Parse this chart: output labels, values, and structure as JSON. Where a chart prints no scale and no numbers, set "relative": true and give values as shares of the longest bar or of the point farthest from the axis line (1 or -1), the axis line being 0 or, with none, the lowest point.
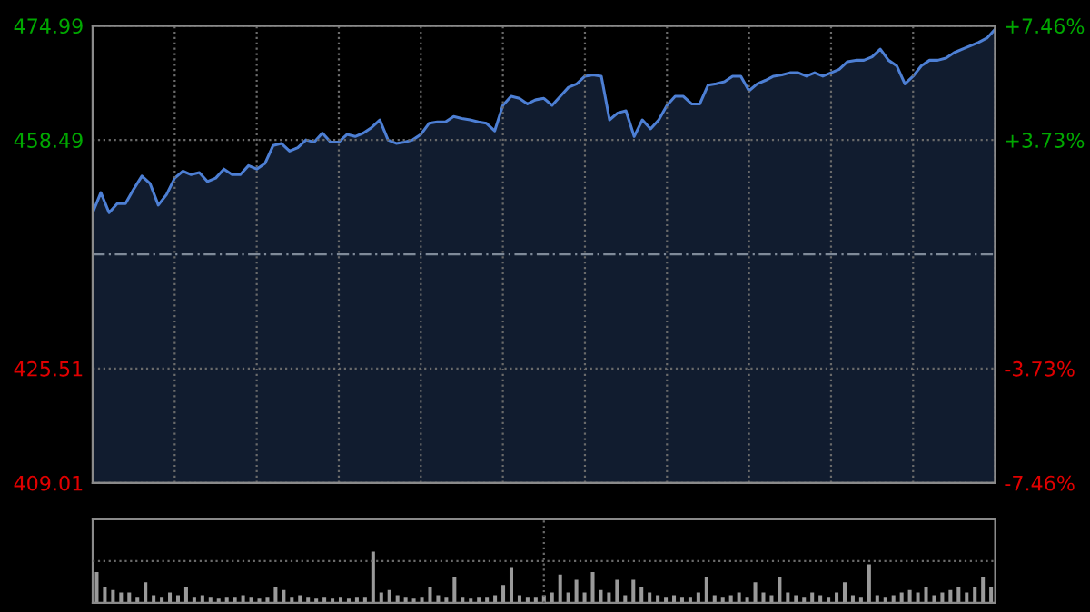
{
  "chart_data": [
    {
      "type": "area",
      "categories": [
        null,
        null,
        null,
        null,
        null,
        null,
        null,
        null,
        null,
        null,
        null,
        null,
        null,
        null,
        null,
        null,
        null,
        null,
        null,
        null,
        null,
        null,
        null,
        null,
        null,
        null,
        null,
        null,
        null,
        null,
        null,
        null,
        null,
        null,
        null,
        null,
        null,
        null,
        null,
        null,
        null,
        null,
        null,
        null,
        null,
        null,
        null,
        null,
        null,
        null,
        null,
        null,
        null,
        null,
        null,
        null,
        null,
        null,
        null,
        null,
        null,
        null,
        null,
        null,
        null,
        null,
        null,
        null,
        null,
        null,
        null,
        null,
        null,
        null,
        null,
        null,
        null,
        null,
        null,
        null,
        null,
        null,
        null,
        null,
        null,
        null,
        null,
        null,
        null,
        null,
        null,
        null,
        null,
        null,
        null,
        null,
        null,
        null,
        null,
        null,
        null,
        null,
        null,
        null,
        null,
        null,
        null,
        null,
        null,
        null,
        null
      ],
      "series": [
        {
          "color": "#4d7fd4",
          "values": [
            448.0,
            450.9,
            448.0,
            449.3,
            449.3,
            451.4,
            453.3,
            452.2,
            449.1,
            450.6,
            453.0,
            454.0,
            453.5,
            453.8,
            452.5,
            453.0,
            454.3,
            453.5,
            453.5,
            454.8,
            454.3,
            455.1,
            457.7,
            458.0,
            456.9,
            457.4,
            458.5,
            458.2,
            459.5,
            458.2,
            458.2,
            459.3,
            459.0,
            459.5,
            460.3,
            461.4,
            458.5,
            458.0,
            458.2,
            458.5,
            459.3,
            460.9,
            461.1,
            461.1,
            461.9,
            461.6,
            461.4,
            461.1,
            460.9,
            459.8,
            463.5,
            464.8,
            464.5,
            463.7,
            464.3,
            464.5,
            463.5,
            464.8,
            466.1,
            466.6,
            467.7,
            467.9,
            467.7,
            461.4,
            462.4,
            462.7,
            459.0,
            461.4,
            460.1,
            461.4,
            463.5,
            464.8,
            464.8,
            463.7,
            463.7,
            466.4,
            466.6,
            466.9,
            467.7,
            467.7,
            465.6,
            466.6,
            467.1,
            467.7,
            467.9,
            468.2,
            468.2,
            467.7,
            468.2,
            467.7,
            468.2,
            468.7,
            469.8,
            470.0,
            470.0,
            470.5,
            471.6,
            470.0,
            469.2,
            466.6,
            467.7,
            469.2,
            470.0,
            470.0,
            470.3,
            471.1,
            471.6,
            472.1,
            472.6,
            473.2,
            474.5
          ]
        }
      ],
      "ylim": [
        409.01,
        474.99
      ],
      "yticks": [
        409.01,
        425.51,
        458.49,
        474.99
      ],
      "y2lim": [
        -7.46,
        7.46
      ],
      "y2ticks": [
        {
          "value": -7.46,
          "label": "-7.46%"
        },
        {
          "value": -3.73,
          "label": "-3.73%"
        },
        {
          "value": 3.73,
          "label": "+3.73%"
        },
        {
          "value": 7.46,
          "label": "+7.46%"
        }
      ],
      "ref_lines": [
        {
          "axis": "y",
          "value": 442.0,
          "color": "#7f8a99",
          "line_style": "dashed"
        }
      ],
      "grid": true
    },
    {
      "type": "bar",
      "relative": true,
      "categories": [
        null,
        null,
        null,
        null,
        null,
        null,
        null,
        null,
        null,
        null,
        null,
        null,
        null,
        null,
        null,
        null,
        null,
        null,
        null,
        null,
        null,
        null,
        null,
        null,
        null,
        null,
        null,
        null,
        null,
        null,
        null,
        null,
        null,
        null,
        null,
        null,
        null,
        null,
        null,
        null,
        null,
        null,
        null,
        null,
        null,
        null,
        null,
        null,
        null,
        null,
        null,
        null,
        null,
        null,
        null,
        null,
        null,
        null,
        null,
        null,
        null,
        null,
        null,
        null,
        null,
        null,
        null,
        null,
        null,
        null,
        null,
        null,
        null,
        null,
        null,
        null,
        null,
        null,
        null,
        null,
        null,
        null,
        null,
        null,
        null,
        null,
        null,
        null,
        null,
        null,
        null,
        null,
        null,
        null,
        null,
        null,
        null,
        null,
        null,
        null,
        null,
        null,
        null,
        null,
        null,
        null,
        null,
        null,
        null,
        null,
        null
      ],
      "series": [
        {
          "color": "#9a9a9a",
          "values": [
            0.6,
            0.3,
            0.25,
            0.2,
            0.2,
            0.1,
            0.4,
            0.15,
            0.1,
            0.2,
            0.15,
            0.3,
            0.1,
            0.15,
            0.1,
            0.08,
            0.1,
            0.1,
            0.15,
            0.1,
            0.08,
            0.1,
            0.3,
            0.25,
            0.1,
            0.15,
            0.1,
            0.08,
            0.1,
            0.08,
            0.1,
            0.08,
            0.1,
            0.1,
            1.0,
            0.2,
            0.25,
            0.15,
            0.1,
            0.08,
            0.1,
            0.3,
            0.15,
            0.1,
            0.5,
            0.1,
            0.08,
            0.1,
            0.1,
            0.15,
            0.35,
            0.7,
            0.15,
            0.1,
            0.1,
            0.15,
            0.2,
            0.55,
            0.2,
            0.45,
            0.2,
            0.6,
            0.25,
            0.2,
            0.45,
            0.15,
            0.45,
            0.3,
            0.2,
            0.15,
            0.1,
            0.15,
            0.1,
            0.1,
            0.2,
            0.5,
            0.15,
            0.1,
            0.15,
            0.2,
            0.1,
            0.4,
            0.2,
            0.15,
            0.5,
            0.2,
            0.15,
            0.1,
            0.2,
            0.15,
            0.1,
            0.2,
            0.4,
            0.15,
            0.1,
            0.75,
            0.15,
            0.1,
            0.15,
            0.2,
            0.25,
            0.2,
            0.3,
            0.15,
            0.2,
            0.25,
            0.3,
            0.2,
            0.3,
            0.5,
            0.3
          ]
        }
      ],
      "grid": true
    }
  ]
}
